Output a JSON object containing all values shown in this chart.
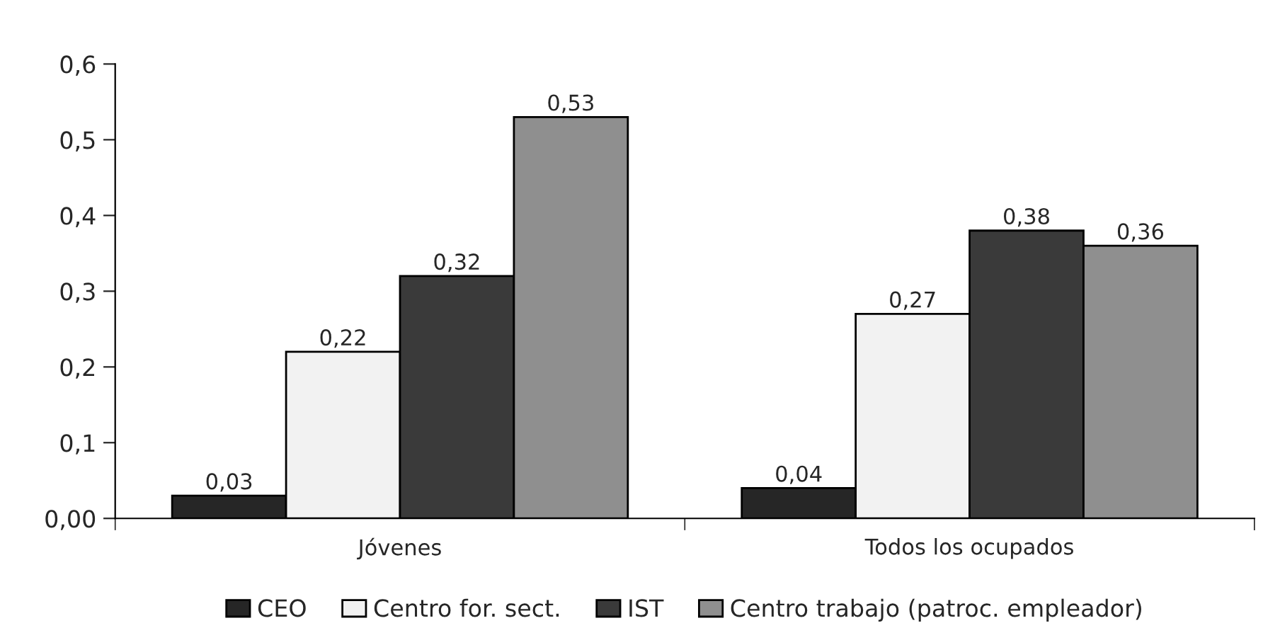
{
  "chart_data": {
    "type": "bar",
    "categories": [
      "Jóvenes",
      "Todos los ocupados"
    ],
    "series": [
      {
        "name": "CEO",
        "color": "#262626",
        "values": [
          0.03,
          0.04
        ],
        "value_labels": [
          "0,03",
          "0,04"
        ]
      },
      {
        "name": "Centro for. sect.",
        "color": "#f2f2f2",
        "values": [
          0.22,
          0.27
        ],
        "value_labels": [
          "0,22",
          "0,27"
        ]
      },
      {
        "name": "IST",
        "color": "#3a3a3a",
        "values": [
          0.32,
          0.38
        ],
        "value_labels": [
          "0,32",
          "0,38"
        ]
      },
      {
        "name": "Centro trabajo (patroc. empleador)",
        "color": "#8f8f8f",
        "values": [
          0.53,
          0.36
        ],
        "value_labels": [
          "0,53",
          "0,36"
        ]
      }
    ],
    "ylim": [
      0,
      0.6
    ],
    "yticks": [
      {
        "value": 0,
        "label": "0,00"
      },
      {
        "value": 0.1,
        "label": "0,1"
      },
      {
        "value": 0.2,
        "label": "0,2"
      },
      {
        "value": 0.3,
        "label": "0,3"
      },
      {
        "value": 0.4,
        "label": "0,4"
      },
      {
        "value": 0.5,
        "label": "0,5"
      },
      {
        "value": 0.6,
        "label": "0,6"
      }
    ],
    "grid": false,
    "legend": "bottom"
  }
}
